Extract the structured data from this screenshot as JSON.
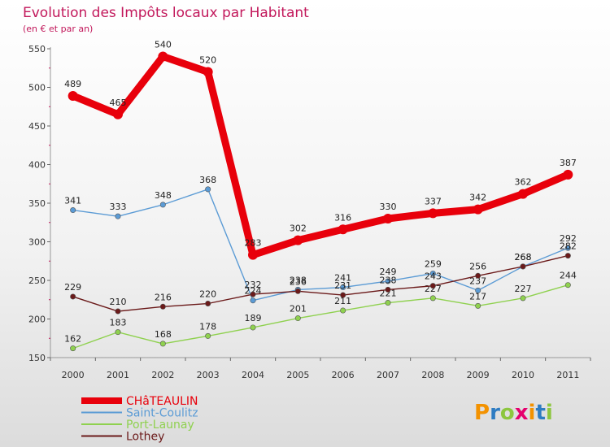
{
  "chart_data": {
    "type": "line",
    "title": "Evolution des Impôts locaux par Habitant",
    "subtitle": "(en € et par an)",
    "x": [
      "2000",
      "2001",
      "2002",
      "2003",
      "2004",
      "2005",
      "2006",
      "2007",
      "2008",
      "2009",
      "2010",
      "2011"
    ],
    "ylim": [
      150,
      550
    ],
    "yticks": [
      150,
      200,
      250,
      300,
      350,
      400,
      450,
      500,
      550
    ],
    "grid": false,
    "series": [
      {
        "name": "CHâTEAULIN",
        "color": "#e8000b",
        "values": [
          489,
          465,
          540,
          520,
          283,
          302,
          316,
          330,
          337,
          342,
          362,
          387
        ],
        "labels": [
          "489",
          "465",
          "540",
          "520",
          "283",
          "302",
          "316",
          "330",
          "337",
          "342",
          "362",
          "387"
        ]
      },
      {
        "name": "Saint-Coulitz",
        "color": "#5b9bd5",
        "values": [
          341,
          333,
          348,
          368,
          224,
          238,
          241,
          249,
          259,
          237,
          268,
          292
        ],
        "labels": [
          "341",
          "333",
          "348",
          "368",
          "224",
          "238",
          "241",
          "249",
          "259",
          "237",
          "268",
          "292"
        ]
      },
      {
        "name": "Port-Launay",
        "color": "#8fd14f",
        "values": [
          162,
          183,
          168,
          178,
          189,
          201,
          211,
          221,
          227,
          217,
          227,
          244
        ],
        "labels": [
          "162",
          "183",
          "168",
          "178",
          "189",
          "201",
          "211",
          "221",
          "227",
          "217",
          "227",
          "244"
        ]
      },
      {
        "name": "Lothey",
        "color": "#6b1a1a",
        "values": [
          229,
          210,
          216,
          220,
          232,
          236,
          231,
          238,
          243,
          256,
          268,
          282
        ],
        "labels": [
          "229",
          "210",
          "216",
          "220",
          "232",
          "236",
          "231",
          "238",
          "243",
          "256",
          "268",
          "282"
        ]
      }
    ]
  },
  "logo": {
    "text": "Proxiti"
  }
}
